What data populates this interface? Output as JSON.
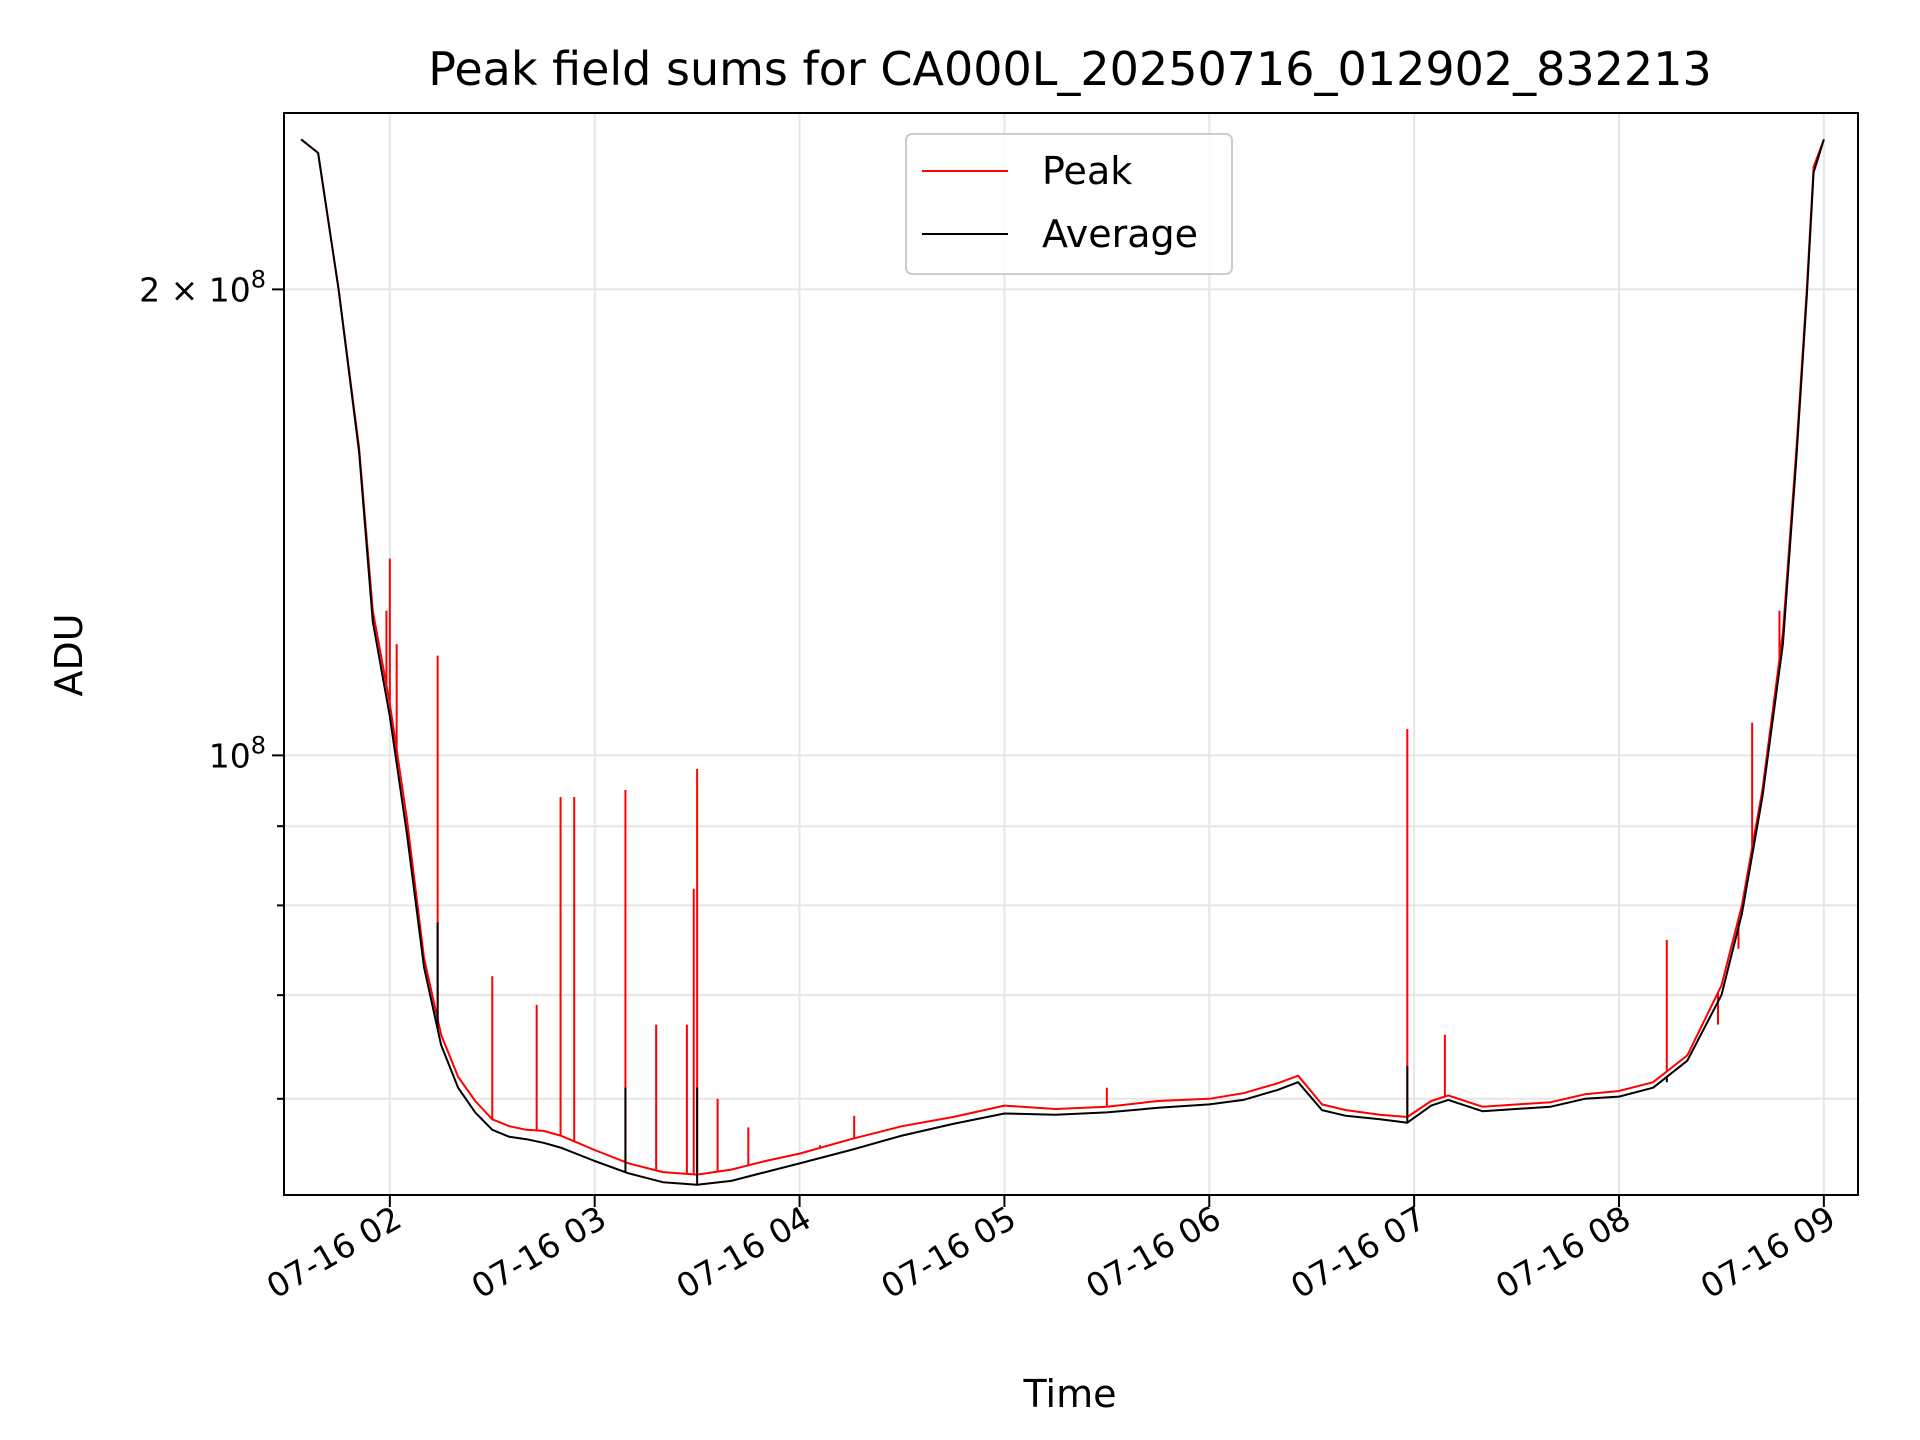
{
  "chart_data": {
    "type": "line",
    "title": "Peak field sums for CA000L_20250716_012902_832213",
    "xlabel": "Time",
    "ylabel": "ADU",
    "y_scale": "log",
    "ylim": [
      52000000,
      260000000
    ],
    "xlim": [
      "2025-07-16 01:29",
      "2025-07-16 09:10"
    ],
    "grid": true,
    "legend_position": "upper center",
    "x_ticks": [
      "2025-07-16 02:00",
      "2025-07-16 03:00",
      "2025-07-16 04:00",
      "2025-07-16 05:00",
      "2025-07-16 06:00",
      "2025-07-16 07:00",
      "2025-07-16 08:00",
      "2025-07-16 09:00"
    ],
    "x_tick_labels": [
      "07-16 02",
      "07-16 03",
      "07-16 04",
      "07-16 05",
      "07-16 06",
      "07-16 07",
      "07-16 08",
      "07-16 09"
    ],
    "y_ticks": [
      {
        "value": 200000000,
        "mantissa": "2",
        "exponent": "8"
      },
      {
        "value": 100000000,
        "mantissa": "",
        "exponent": "8"
      }
    ],
    "y_minor_ticks": [
      60000000,
      70000000,
      80000000,
      90000000
    ],
    "series": [
      {
        "name": "Peak",
        "color": "#ff0000",
        "x": [
          "2025-07-16 01:34",
          "2025-07-16 01:39",
          "2025-07-16 01:45",
          "2025-07-16 01:51",
          "2025-07-16 01:55",
          "2025-07-16 02:00",
          "2025-07-16 02:05",
          "2025-07-16 02:10",
          "2025-07-16 02:15",
          "2025-07-16 02:20",
          "2025-07-16 02:25",
          "2025-07-16 02:30",
          "2025-07-16 02:35",
          "2025-07-16 02:40",
          "2025-07-16 02:45",
          "2025-07-16 02:50",
          "2025-07-16 03:00",
          "2025-07-16 03:10",
          "2025-07-16 03:20",
          "2025-07-16 03:30",
          "2025-07-16 03:40",
          "2025-07-16 03:50",
          "2025-07-16 04:00",
          "2025-07-16 04:15",
          "2025-07-16 04:30",
          "2025-07-16 04:45",
          "2025-07-16 05:00",
          "2025-07-16 05:15",
          "2025-07-16 05:30",
          "2025-07-16 05:45",
          "2025-07-16 06:00",
          "2025-07-16 06:10",
          "2025-07-16 06:20",
          "2025-07-16 06:26",
          "2025-07-16 06:33",
          "2025-07-16 06:40",
          "2025-07-16 06:50",
          "2025-07-16 06:58",
          "2025-07-16 07:05",
          "2025-07-16 07:10",
          "2025-07-16 07:20",
          "2025-07-16 07:40",
          "2025-07-16 07:50",
          "2025-07-16 08:00",
          "2025-07-16 08:10",
          "2025-07-16 08:20",
          "2025-07-16 08:30",
          "2025-07-16 08:36",
          "2025-07-16 08:42",
          "2025-07-16 08:48",
          "2025-07-16 08:52",
          "2025-07-16 08:55",
          "2025-07-16 08:57",
          "2025-07-16 09:00"
        ],
        "y": [
          250000000,
          245000000,
          200000000,
          158000000,
          124000000,
          108000000,
          91000000,
          74000000,
          66000000,
          62000000,
          59800000,
          58200000,
          57600000,
          57300000,
          57200000,
          56800000,
          55600000,
          54500000,
          53800000,
          53600000,
          54000000,
          54700000,
          55300000,
          56500000,
          57600000,
          58400000,
          59400000,
          59100000,
          59300000,
          59800000,
          60000000,
          60500000,
          61400000,
          62100000,
          59500000,
          59000000,
          58600000,
          58400000,
          59800000,
          60300000,
          59300000,
          59700000,
          60400000,
          60700000,
          61500000,
          64000000,
          71000000,
          80000000,
          95000000,
          120000000,
          158000000,
          200000000,
          240000000,
          250000000
        ],
        "spikes": [
          {
            "x": "2025-07-16 01:59",
            "y": 124000000
          },
          {
            "x": "2025-07-16 02:00",
            "y": 134000000
          },
          {
            "x": "2025-07-16 02:02",
            "y": 118000000
          },
          {
            "x": "2025-07-16 02:14",
            "y": 116000000
          },
          {
            "x": "2025-07-16 02:30",
            "y": 72000000
          },
          {
            "x": "2025-07-16 02:43",
            "y": 69000000
          },
          {
            "x": "2025-07-16 02:50",
            "y": 94000000
          },
          {
            "x": "2025-07-16 02:54",
            "y": 94000000
          },
          {
            "x": "2025-07-16 03:09",
            "y": 95000000
          },
          {
            "x": "2025-07-16 03:18",
            "y": 67000000
          },
          {
            "x": "2025-07-16 03:27",
            "y": 67000000
          },
          {
            "x": "2025-07-16 03:29",
            "y": 82000000
          },
          {
            "x": "2025-07-16 03:30",
            "y": 98000000
          },
          {
            "x": "2025-07-16 03:36",
            "y": 60000000
          },
          {
            "x": "2025-07-16 03:45",
            "y": 57500000
          },
          {
            "x": "2025-07-16 04:06",
            "y": 56000000
          },
          {
            "x": "2025-07-16 04:16",
            "y": 58500000
          },
          {
            "x": "2025-07-16 05:30",
            "y": 61000000
          },
          {
            "x": "2025-07-16 06:58",
            "y": 104000000
          },
          {
            "x": "2025-07-16 07:09",
            "y": 66000000
          },
          {
            "x": "2025-07-16 08:14",
            "y": 76000000
          },
          {
            "x": "2025-07-16 08:29",
            "y": 67000000
          },
          {
            "x": "2025-07-16 08:35",
            "y": 75000000
          },
          {
            "x": "2025-07-16 08:39",
            "y": 105000000
          },
          {
            "x": "2025-07-16 08:47",
            "y": 124000000
          }
        ]
      },
      {
        "name": "Average",
        "color": "#000000",
        "x": [
          "2025-07-16 01:34",
          "2025-07-16 01:39",
          "2025-07-16 01:45",
          "2025-07-16 01:51",
          "2025-07-16 01:55",
          "2025-07-16 02:00",
          "2025-07-16 02:05",
          "2025-07-16 02:10",
          "2025-07-16 02:15",
          "2025-07-16 02:20",
          "2025-07-16 02:25",
          "2025-07-16 02:30",
          "2025-07-16 02:35",
          "2025-07-16 02:40",
          "2025-07-16 02:45",
          "2025-07-16 02:50",
          "2025-07-16 03:00",
          "2025-07-16 03:10",
          "2025-07-16 03:20",
          "2025-07-16 03:30",
          "2025-07-16 03:40",
          "2025-07-16 03:50",
          "2025-07-16 04:00",
          "2025-07-16 04:15",
          "2025-07-16 04:30",
          "2025-07-16 04:45",
          "2025-07-16 05:00",
          "2025-07-16 05:15",
          "2025-07-16 05:30",
          "2025-07-16 05:45",
          "2025-07-16 06:00",
          "2025-07-16 06:10",
          "2025-07-16 06:20",
          "2025-07-16 06:26",
          "2025-07-16 06:33",
          "2025-07-16 06:40",
          "2025-07-16 06:50",
          "2025-07-16 06:58",
          "2025-07-16 07:05",
          "2025-07-16 07:10",
          "2025-07-16 07:20",
          "2025-07-16 07:40",
          "2025-07-16 07:50",
          "2025-07-16 08:00",
          "2025-07-16 08:10",
          "2025-07-16 08:20",
          "2025-07-16 08:30",
          "2025-07-16 08:36",
          "2025-07-16 08:42",
          "2025-07-16 08:48",
          "2025-07-16 08:52",
          "2025-07-16 08:55",
          "2025-07-16 08:57",
          "2025-07-16 09:00"
        ],
        "y": [
          250000000,
          245000000,
          200000000,
          157000000,
          122000000,
          106000000,
          89000000,
          73000000,
          65000000,
          61000000,
          58800000,
          57300000,
          56700000,
          56500000,
          56200000,
          55800000,
          54700000,
          53700000,
          53000000,
          52800000,
          53100000,
          53800000,
          54500000,
          55600000,
          56800000,
          57800000,
          58700000,
          58600000,
          58800000,
          59200000,
          59500000,
          59900000,
          60800000,
          61500000,
          59000000,
          58500000,
          58200000,
          57900000,
          59400000,
          59900000,
          58900000,
          59300000,
          60000000,
          60200000,
          61000000,
          63500000,
          70000000,
          79000000,
          94000000,
          118000000,
          156000000,
          198000000,
          238000000,
          250000000
        ],
        "spikes": [
          {
            "x": "2025-07-16 02:14",
            "y": 78000000
          },
          {
            "x": "2025-07-16 03:09",
            "y": 61000000
          },
          {
            "x": "2025-07-16 03:30",
            "y": 61000000
          },
          {
            "x": "2025-07-16 06:58",
            "y": 63000000
          },
          {
            "x": "2025-07-16 08:14",
            "y": 61500000
          }
        ]
      }
    ]
  }
}
